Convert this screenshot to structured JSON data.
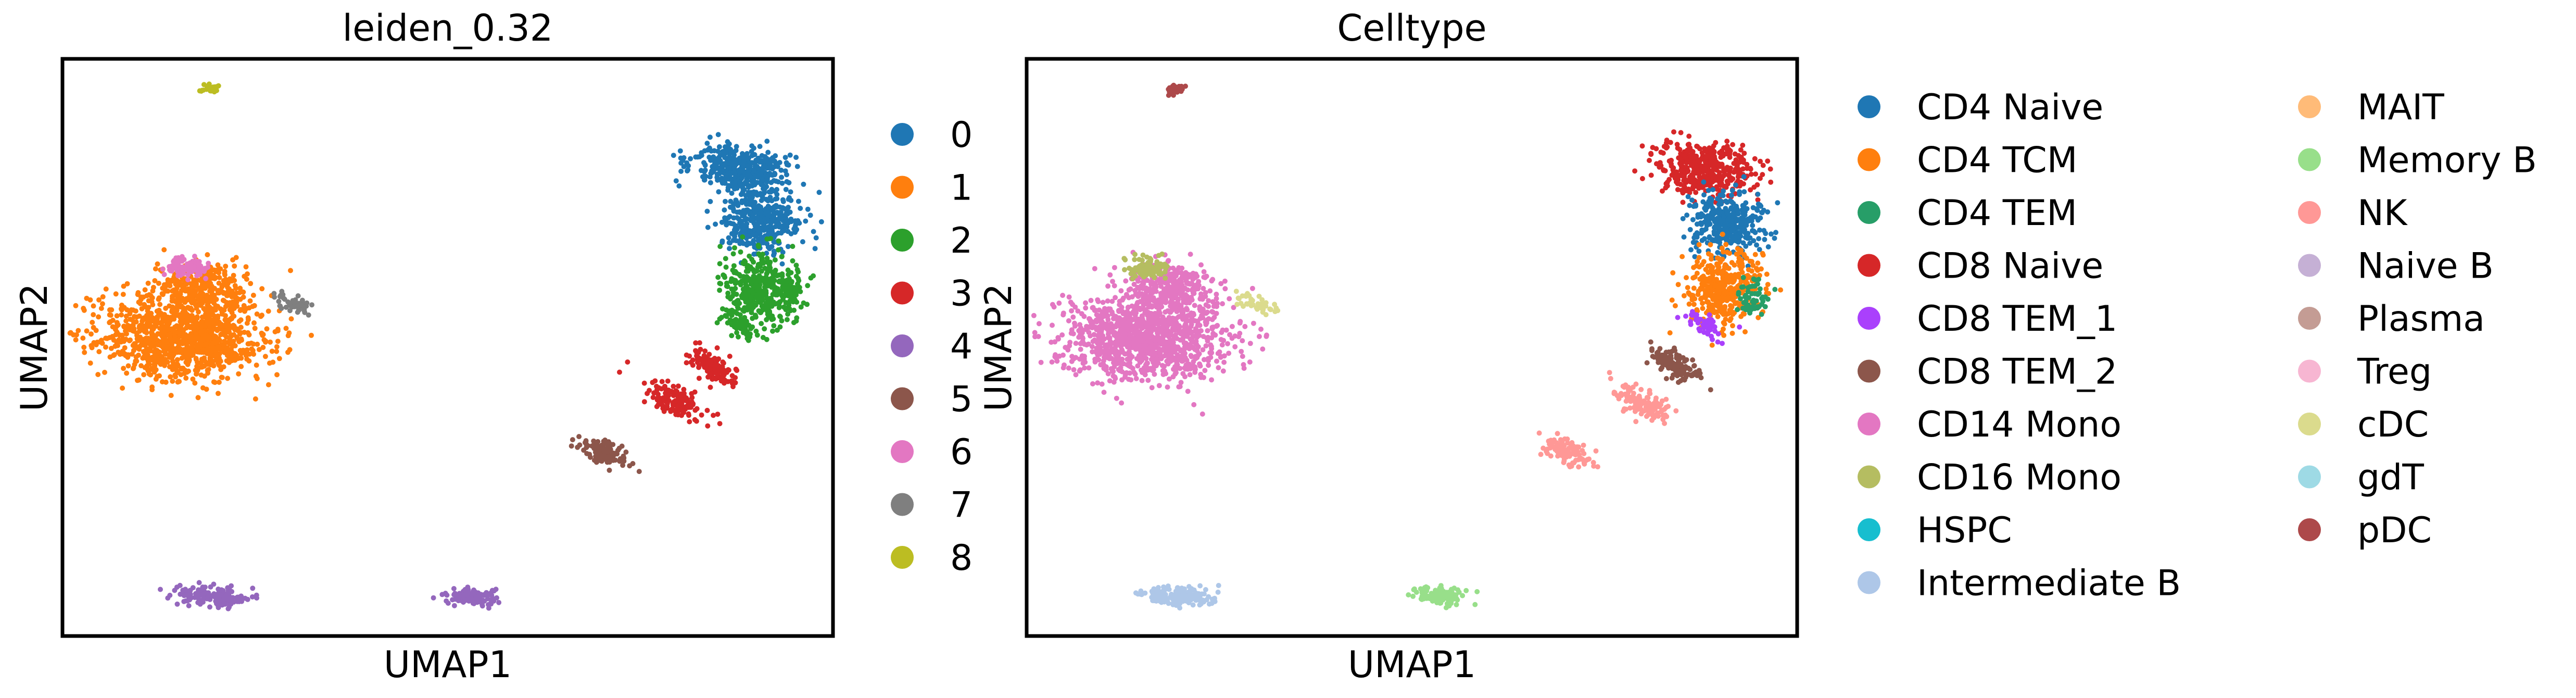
{
  "chart_data": [
    {
      "type": "scatter",
      "title": "leiden_0.32",
      "xlabel": "UMAP1",
      "ylabel": "UMAP2",
      "xticks": [],
      "yticks": [],
      "grid": false,
      "legend_placement": "right",
      "legend_columns": 1,
      "series": [
        {
          "name": "0",
          "color": "#1f77b4"
        },
        {
          "name": "1",
          "color": "#ff7f0e"
        },
        {
          "name": "2",
          "color": "#2ca02c"
        },
        {
          "name": "3",
          "color": "#d62728"
        },
        {
          "name": "4",
          "color": "#9467bd"
        },
        {
          "name": "5",
          "color": "#8c564b"
        },
        {
          "name": "6",
          "color": "#e377c2"
        },
        {
          "name": "7",
          "color": "#7f7f7f"
        },
        {
          "name": "8",
          "color": "#bcbd22"
        }
      ]
    },
    {
      "type": "scatter",
      "title": "Celltype",
      "xlabel": "UMAP1",
      "ylabel": "UMAP2",
      "xticks": [],
      "yticks": [],
      "grid": false,
      "legend_placement": "right",
      "legend_columns": 2,
      "series": [
        {
          "name": "CD4 Naive",
          "color": "#1f77b4"
        },
        {
          "name": "CD4 TCM",
          "color": "#ff7f0e"
        },
        {
          "name": "CD4 TEM",
          "color": "#279e68"
        },
        {
          "name": "CD8 Naive",
          "color": "#d62728"
        },
        {
          "name": "CD8 TEM_1",
          "color": "#aa40fc"
        },
        {
          "name": "CD8 TEM_2",
          "color": "#8c564b"
        },
        {
          "name": "CD14 Mono",
          "color": "#e377c2"
        },
        {
          "name": "CD16 Mono",
          "color": "#b5bd61"
        },
        {
          "name": "HSPC",
          "color": "#17becf"
        },
        {
          "name": "Intermediate B",
          "color": "#aec7e8"
        },
        {
          "name": "MAIT",
          "color": "#ffbb78"
        },
        {
          "name": "Memory B",
          "color": "#98df8a"
        },
        {
          "name": "NK",
          "color": "#ff9896"
        },
        {
          "name": "Naive B",
          "color": "#c5b0d5"
        },
        {
          "name": "Plasma",
          "color": "#c49c94"
        },
        {
          "name": "Treg",
          "color": "#f7b6d2"
        },
        {
          "name": "cDC",
          "color": "#dbdb8d"
        },
        {
          "name": "gdT",
          "color": "#9edae5"
        },
        {
          "name": "pDC",
          "color": "#ad494a"
        }
      ]
    }
  ]
}
